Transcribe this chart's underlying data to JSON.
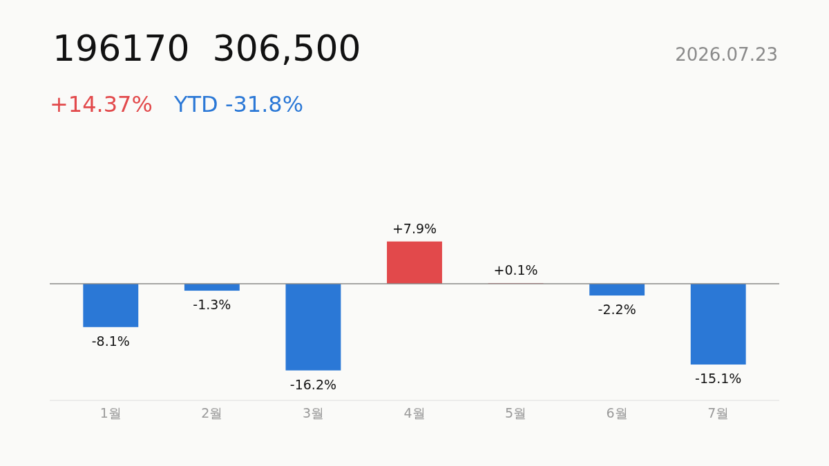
{
  "chart_data": {
    "type": "bar",
    "title": "196170  306,500",
    "annotations": [
      "2026.07.23",
      "+14.37%",
      "YTD -31.8%"
    ],
    "categories": [
      "1월",
      "2월",
      "3월",
      "4월",
      "5월",
      "6월",
      "7월"
    ],
    "values": [
      -8.1,
      -1.3,
      -16.2,
      7.9,
      0.1,
      -2.2,
      -15.1
    ],
    "colors": [
      "#2b78d6",
      "#2b78d6",
      "#2b78d6",
      "#e2494b",
      "#e2494b",
      "#2b78d6",
      "#2b78d6"
    ],
    "value_labels": [
      "-8.1%",
      "-1.3%",
      "-16.2%",
      "+7.9%",
      "+0.1%",
      "-2.2%",
      "-15.1%"
    ],
    "relative": false
  }
}
